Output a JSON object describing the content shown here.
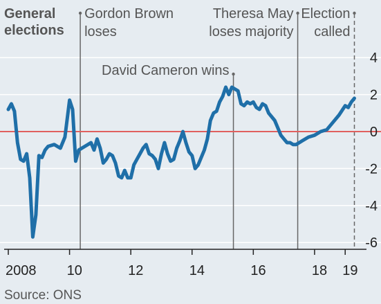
{
  "chart_data": {
    "type": "line",
    "title": "General elections",
    "title_lines": [
      "General",
      "elections"
    ],
    "source": "Source: ONS",
    "x_ticks": [
      {
        "x": 2008,
        "label": "2008"
      },
      {
        "x": 2010,
        "label": "10"
      },
      {
        "x": 2012,
        "label": "12"
      },
      {
        "x": 2014,
        "label": "14"
      },
      {
        "x": 2016,
        "label": "16"
      },
      {
        "x": 2018,
        "label": "18"
      },
      {
        "x": 2019,
        "label": "19"
      }
    ],
    "xlim": [
      2008.0,
      2019.65
    ],
    "ylim": [
      -6.1,
      4.5
    ],
    "y_ticks": [
      {
        "y": 4,
        "label": "4"
      },
      {
        "y": 2,
        "label": "2"
      },
      {
        "y": 0,
        "label": "0"
      },
      {
        "y": -2,
        "label": "-2"
      },
      {
        "y": -4,
        "label": "-4"
      },
      {
        "y": -6,
        "label": "-6"
      }
    ],
    "grid": "horizontal",
    "zero_line_color": "#e0605e",
    "series_color": "#1f6fa8",
    "events": [
      {
        "x": 2010.35,
        "lines": [
          "Gordon Brown",
          "loses"
        ],
        "style": "solid"
      },
      {
        "x": 2015.35,
        "lines": [
          "David Cameron wins"
        ],
        "style": "solid"
      },
      {
        "x": 2017.45,
        "lines": [
          "Theresa May",
          "loses majority"
        ],
        "style": "solid"
      },
      {
        "x": 2019.3,
        "lines": [
          "Election",
          "called"
        ],
        "style": "dashed"
      }
    ],
    "series": [
      {
        "points": [
          [
            2008.0,
            1.2
          ],
          [
            2008.1,
            1.5
          ],
          [
            2008.2,
            1.1
          ],
          [
            2008.3,
            -0.6
          ],
          [
            2008.4,
            -1.5
          ],
          [
            2008.5,
            -1.6
          ],
          [
            2008.6,
            -1.2
          ],
          [
            2008.7,
            -2.5
          ],
          [
            2008.8,
            -5.7
          ],
          [
            2008.9,
            -4.5
          ],
          [
            2009.0,
            -1.3
          ],
          [
            2009.1,
            -1.4
          ],
          [
            2009.2,
            -1.0
          ],
          [
            2009.3,
            -0.8
          ],
          [
            2009.5,
            -0.7
          ],
          [
            2009.7,
            -0.9
          ],
          [
            2009.85,
            -0.3
          ],
          [
            2010.0,
            1.7
          ],
          [
            2010.1,
            1.2
          ],
          [
            2010.2,
            -1.6
          ],
          [
            2010.3,
            -1.0
          ],
          [
            2010.5,
            -0.8
          ],
          [
            2010.7,
            -0.6
          ],
          [
            2010.8,
            -1.0
          ],
          [
            2010.9,
            -0.4
          ],
          [
            2011.0,
            -0.9
          ],
          [
            2011.1,
            -1.7
          ],
          [
            2011.2,
            -1.5
          ],
          [
            2011.3,
            -1.2
          ],
          [
            2011.4,
            -1.3
          ],
          [
            2011.5,
            -1.7
          ],
          [
            2011.6,
            -2.4
          ],
          [
            2011.7,
            -2.5
          ],
          [
            2011.8,
            -2.1
          ],
          [
            2011.9,
            -2.5
          ],
          [
            2012.0,
            -2.5
          ],
          [
            2012.1,
            -1.8
          ],
          [
            2012.2,
            -1.5
          ],
          [
            2012.3,
            -1.2
          ],
          [
            2012.4,
            -0.9
          ],
          [
            2012.5,
            -0.7
          ],
          [
            2012.6,
            -1.2
          ],
          [
            2012.7,
            -1.3
          ],
          [
            2012.8,
            -1.5
          ],
          [
            2012.9,
            -2.0
          ],
          [
            2013.0,
            -1.2
          ],
          [
            2013.1,
            -0.6
          ],
          [
            2013.2,
            -1.2
          ],
          [
            2013.3,
            -1.6
          ],
          [
            2013.4,
            -1.5
          ],
          [
            2013.5,
            -0.9
          ],
          [
            2013.6,
            -0.5
          ],
          [
            2013.7,
            0.0
          ],
          [
            2013.8,
            -0.6
          ],
          [
            2013.9,
            -1.1
          ],
          [
            2014.0,
            -1.3
          ],
          [
            2014.1,
            -2.0
          ],
          [
            2014.2,
            -1.8
          ],
          [
            2014.3,
            -1.4
          ],
          [
            2014.4,
            -1.0
          ],
          [
            2014.5,
            -0.4
          ],
          [
            2014.6,
            0.6
          ],
          [
            2014.7,
            1.0
          ],
          [
            2014.8,
            1.1
          ],
          [
            2014.9,
            1.6
          ],
          [
            2015.0,
            1.9
          ],
          [
            2015.1,
            2.4
          ],
          [
            2015.2,
            2.0
          ],
          [
            2015.3,
            2.4
          ],
          [
            2015.4,
            2.3
          ],
          [
            2015.5,
            2.2
          ],
          [
            2015.6,
            1.5
          ],
          [
            2015.7,
            1.4
          ],
          [
            2015.8,
            1.6
          ],
          [
            2015.9,
            1.5
          ],
          [
            2016.0,
            1.6
          ],
          [
            2016.1,
            1.3
          ],
          [
            2016.2,
            1.2
          ],
          [
            2016.3,
            1.5
          ],
          [
            2016.4,
            1.4
          ],
          [
            2016.5,
            1.0
          ],
          [
            2016.6,
            0.8
          ],
          [
            2016.7,
            0.6
          ],
          [
            2016.8,
            0.2
          ],
          [
            2016.9,
            -0.2
          ],
          [
            2017.0,
            -0.4
          ],
          [
            2017.1,
            -0.6
          ],
          [
            2017.2,
            -0.6
          ],
          [
            2017.3,
            -0.7
          ],
          [
            2017.4,
            -0.7
          ],
          [
            2017.5,
            -0.6
          ],
          [
            2017.6,
            -0.5
          ],
          [
            2017.8,
            -0.3
          ],
          [
            2018.0,
            -0.2
          ],
          [
            2018.2,
            0.0
          ],
          [
            2018.4,
            0.1
          ],
          [
            2018.6,
            0.5
          ],
          [
            2018.8,
            0.9
          ],
          [
            2019.0,
            1.4
          ],
          [
            2019.1,
            1.3
          ],
          [
            2019.2,
            1.6
          ],
          [
            2019.3,
            1.8
          ]
        ]
      }
    ]
  }
}
